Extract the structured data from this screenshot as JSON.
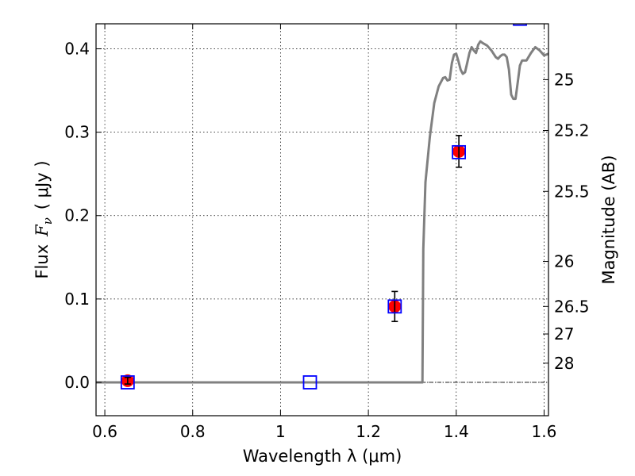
{
  "chart_data": {
    "type": "scatter",
    "xlim": [
      0.58,
      1.61
    ],
    "ylim": [
      -0.04,
      0.43
    ],
    "grid": true,
    "grid_style": "dotted",
    "x_ticks": [
      0.6,
      0.8,
      1.0,
      1.2,
      1.4,
      1.6
    ],
    "x_tick_labels": [
      "0.6",
      "0.8",
      "1",
      "1.2",
      "1.4",
      "1.6"
    ],
    "y_ticks": [
      0.0,
      0.1,
      0.2,
      0.3,
      0.4
    ],
    "y_tick_labels": [
      "0.0",
      "0.1",
      "0.2",
      "0.3",
      "0.4"
    ],
    "xlabel": "Wavelength  λ (μm)",
    "ylabel_text": "Flux",
    "ylabel_symbol": "F",
    "ylabel_subscript": "ν",
    "ylabel_unit": "( μJy )",
    "y2label": "Magnitude (AB)",
    "y2_ticks": [
      {
        "label": "25",
        "flux": 0.363
      },
      {
        "label": "25.2",
        "flux": 0.302
      },
      {
        "label": "25.5",
        "flux": 0.229
      },
      {
        "label": "26",
        "flux": 0.145
      },
      {
        "label": "26.5",
        "flux": 0.091
      },
      {
        "label": "27",
        "flux": 0.058
      },
      {
        "label": "28",
        "flux": 0.023
      }
    ],
    "colors": {
      "model": "#808080",
      "observed": "#ff0000",
      "model_photometry": "#0000ff",
      "errorbar": "#000000",
      "zero_line": "#000000"
    },
    "series": [
      {
        "kind": "line",
        "points": [
          [
            0.58,
            0.0
          ],
          [
            1.323,
            0.0
          ],
          [
            1.325,
            0.16
          ],
          [
            1.33,
            0.24
          ],
          [
            1.34,
            0.295
          ],
          [
            1.35,
            0.335
          ],
          [
            1.36,
            0.355
          ],
          [
            1.37,
            0.365
          ],
          [
            1.375,
            0.366
          ],
          [
            1.38,
            0.362
          ],
          [
            1.385,
            0.363
          ],
          [
            1.39,
            0.383
          ],
          [
            1.395,
            0.393
          ],
          [
            1.4,
            0.394
          ],
          [
            1.405,
            0.385
          ],
          [
            1.41,
            0.375
          ],
          [
            1.415,
            0.37
          ],
          [
            1.42,
            0.372
          ],
          [
            1.425,
            0.383
          ],
          [
            1.43,
            0.395
          ],
          [
            1.435,
            0.402
          ],
          [
            1.44,
            0.398
          ],
          [
            1.445,
            0.395
          ],
          [
            1.45,
            0.405
          ],
          [
            1.455,
            0.409
          ],
          [
            1.46,
            0.407
          ],
          [
            1.47,
            0.404
          ],
          [
            1.48,
            0.398
          ],
          [
            1.49,
            0.39
          ],
          [
            1.495,
            0.388
          ],
          [
            1.5,
            0.391
          ],
          [
            1.505,
            0.393
          ],
          [
            1.51,
            0.393
          ],
          [
            1.515,
            0.39
          ],
          [
            1.52,
            0.375
          ],
          [
            1.525,
            0.345
          ],
          [
            1.53,
            0.34
          ],
          [
            1.535,
            0.34
          ],
          [
            1.54,
            0.36
          ],
          [
            1.545,
            0.38
          ],
          [
            1.55,
            0.386
          ],
          [
            1.56,
            0.386
          ],
          [
            1.57,
            0.395
          ],
          [
            1.58,
            0.402
          ],
          [
            1.59,
            0.398
          ],
          [
            1.6,
            0.392
          ],
          [
            1.61,
            0.394
          ]
        ]
      },
      {
        "kind": "observed",
        "points": [
          {
            "x": 0.652,
            "y": 0.002,
            "err": 0.004
          },
          {
            "x": 1.26,
            "y": 0.091,
            "err": 0.018
          },
          {
            "x": 1.406,
            "y": 0.277,
            "err": 0.019
          }
        ]
      },
      {
        "kind": "model_photometry",
        "points": [
          {
            "x": 0.652,
            "y": 0.0
          },
          {
            "x": 1.067,
            "y": 0.0
          },
          {
            "x": 1.26,
            "y": 0.091
          },
          {
            "x": 1.406,
            "y": 0.276
          },
          {
            "x": 1.545,
            "y": 0.436
          }
        ]
      }
    ]
  }
}
